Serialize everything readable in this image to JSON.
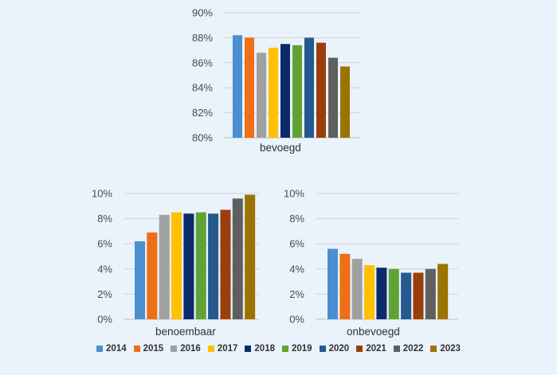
{
  "chart_data": [
    {
      "type": "bar",
      "id": "bevoegd",
      "categories": [
        "bevoegd"
      ],
      "xlabel": "bevoegd",
      "ylim": [
        80,
        90
      ],
      "yticks": [
        "80%",
        "82%",
        "84%",
        "86%",
        "88%",
        "90%"
      ],
      "tick_values": [
        80,
        82,
        84,
        86,
        88,
        90
      ],
      "series": [
        {
          "name": "2014",
          "values": [
            88.2
          ]
        },
        {
          "name": "2015",
          "values": [
            88.0
          ]
        },
        {
          "name": "2016",
          "values": [
            86.8
          ]
        },
        {
          "name": "2017",
          "values": [
            87.2
          ]
        },
        {
          "name": "2018",
          "values": [
            87.5
          ]
        },
        {
          "name": "2019",
          "values": [
            87.4
          ]
        },
        {
          "name": "2020",
          "values": [
            88.0
          ]
        },
        {
          "name": "2021",
          "values": [
            87.6
          ]
        },
        {
          "name": "2022",
          "values": [
            86.4
          ]
        },
        {
          "name": "2023",
          "values": [
            85.7
          ]
        }
      ]
    },
    {
      "type": "bar",
      "id": "benoembaar",
      "categories": [
        "benoembaar"
      ],
      "xlabel": "benoembaar",
      "ylim": [
        0,
        10
      ],
      "yticks": [
        "0%",
        "2%",
        "4%",
        "6%",
        "8%",
        "10%"
      ],
      "tick_values": [
        0,
        2,
        4,
        6,
        8,
        10
      ],
      "series": [
        {
          "name": "2014",
          "values": [
            6.2
          ]
        },
        {
          "name": "2015",
          "values": [
            6.9
          ]
        },
        {
          "name": "2016",
          "values": [
            8.3
          ]
        },
        {
          "name": "2017",
          "values": [
            8.5
          ]
        },
        {
          "name": "2018",
          "values": [
            8.4
          ]
        },
        {
          "name": "2019",
          "values": [
            8.5
          ]
        },
        {
          "name": "2020",
          "values": [
            8.4
          ]
        },
        {
          "name": "2021",
          "values": [
            8.7
          ]
        },
        {
          "name": "2022",
          "values": [
            9.6
          ]
        },
        {
          "name": "2023",
          "values": [
            9.9
          ]
        }
      ]
    },
    {
      "type": "bar",
      "id": "onbevoegd",
      "categories": [
        "onbevoegd"
      ],
      "xlabel": "onbevoegd",
      "ylim": [
        0,
        10
      ],
      "yticks": [
        "0%",
        "2%",
        "4%",
        "6%",
        "8%",
        "10%"
      ],
      "tick_values": [
        0,
        2,
        4,
        6,
        8,
        10
      ],
      "series": [
        {
          "name": "2014",
          "values": [
            5.6
          ]
        },
        {
          "name": "2015",
          "values": [
            5.2
          ]
        },
        {
          "name": "2016",
          "values": [
            4.8
          ]
        },
        {
          "name": "2017",
          "values": [
            4.3
          ]
        },
        {
          "name": "2018",
          "values": [
            4.1
          ]
        },
        {
          "name": "2019",
          "values": [
            4.0
          ]
        },
        {
          "name": "2020",
          "values": [
            3.7
          ]
        },
        {
          "name": "2021",
          "values": [
            3.7
          ]
        },
        {
          "name": "2022",
          "values": [
            4.0
          ]
        },
        {
          "name": "2023",
          "values": [
            4.4
          ]
        }
      ]
    }
  ],
  "legend": {
    "entries": [
      "2014",
      "2015",
      "2016",
      "2017",
      "2018",
      "2019",
      "2020",
      "2021",
      "2022",
      "2023"
    ],
    "colors": [
      "#4a8fd0",
      "#ee6f17",
      "#a0a0a0",
      "#ffc000",
      "#0d2a6b",
      "#5fa336",
      "#25598f",
      "#9a3f0c",
      "#5f5f5f",
      "#9b7300"
    ]
  }
}
